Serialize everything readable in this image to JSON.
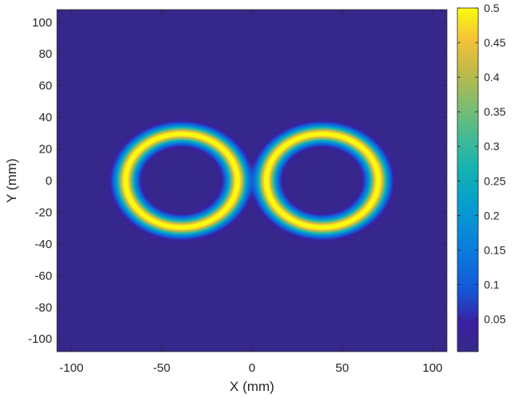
{
  "chart_data": {
    "type": "heatmap",
    "title": "",
    "xlabel": "X (mm)",
    "ylabel": "Y (mm)",
    "xlim": [
      -108,
      108
    ],
    "ylim": [
      -108,
      108
    ],
    "x_ticks": [
      -100,
      -50,
      0,
      50,
      100
    ],
    "y_ticks": [
      100,
      80,
      60,
      40,
      20,
      0,
      -20,
      -40,
      -60,
      -80,
      -100
    ],
    "colorbar": {
      "colormap": "parula",
      "clim": [
        0.003,
        0.5
      ],
      "ticks": [
        0.5,
        0.45,
        0.4,
        0.35,
        0.3,
        0.25,
        0.2,
        0.15,
        0.1,
        0.05
      ]
    },
    "features": [
      {
        "shape": "ring",
        "center_x": -39,
        "center_y": 0,
        "radius_x": 31,
        "radius_y": 29.5,
        "peak_value": 0.5
      },
      {
        "shape": "ring",
        "center_x": 39,
        "center_y": 0,
        "radius_x": 31,
        "radius_y": 29.5,
        "peak_value": 0.5
      }
    ],
    "background_value": 0.01,
    "grid": false
  },
  "colors": {
    "background_field": "#3b1f9e",
    "peak": "#f9fb0e",
    "axis": "#262626"
  }
}
